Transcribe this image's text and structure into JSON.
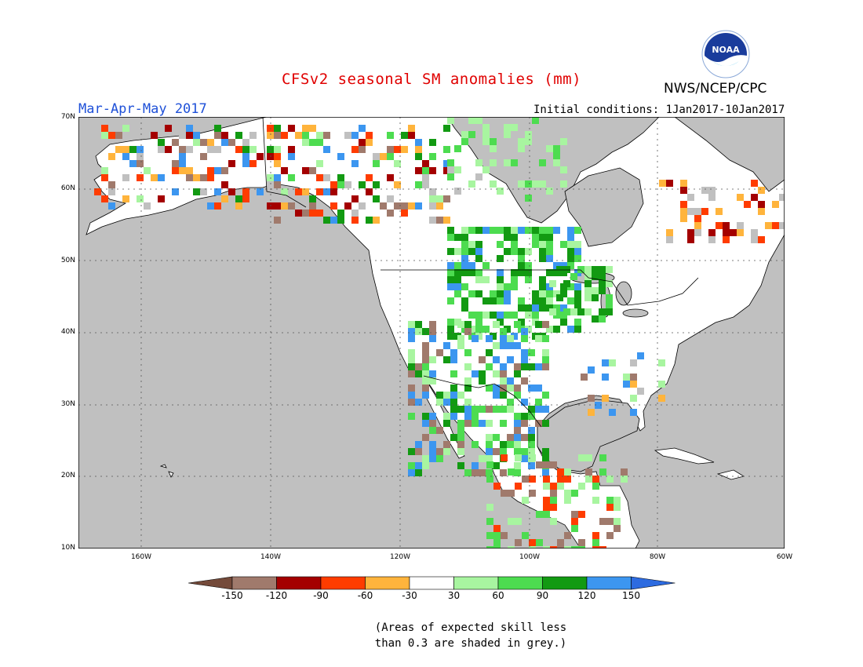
{
  "header": {
    "title": "CFSv2 seasonal SM anomalies (mm)",
    "season": "Mar-Apr-May 2017",
    "initial_conditions": "Initial conditions: 1Jan2017-10Jan2017",
    "agency": "NWS/NCEP/CPC",
    "logo_text": "NOAA"
  },
  "map": {
    "lon_range": [
      -173,
      -60
    ],
    "lat_range": [
      10,
      70
    ],
    "lat_labels": [
      "70N",
      "60N",
      "50N",
      "40N",
      "30N",
      "20N",
      "10N"
    ],
    "lon_labels": [
      "160W",
      "140W",
      "120W",
      "100W",
      "80W",
      "60W"
    ],
    "colors": {
      "ocean": "#c0c0c0",
      "land": "#ffffff",
      "low_skill": "#c0c0c0"
    }
  },
  "legend": {
    "labels": [
      "-150",
      "-120",
      "-90",
      "-60",
      "-30",
      "30",
      "60",
      "90",
      "120",
      "150"
    ],
    "colors": [
      "#744a3a",
      "#a07a6c",
      "#a40000",
      "#ff3c00",
      "#ffb43c",
      "#ffffff",
      "#a8f5a0",
      "#4ddc50",
      "#129a12",
      "#3c96f0",
      "#2d6be0"
    ]
  },
  "footnote": {
    "line1": "(Areas of expected skill less",
    "line2": "than 0.3 are shaded in grey.)"
  }
}
